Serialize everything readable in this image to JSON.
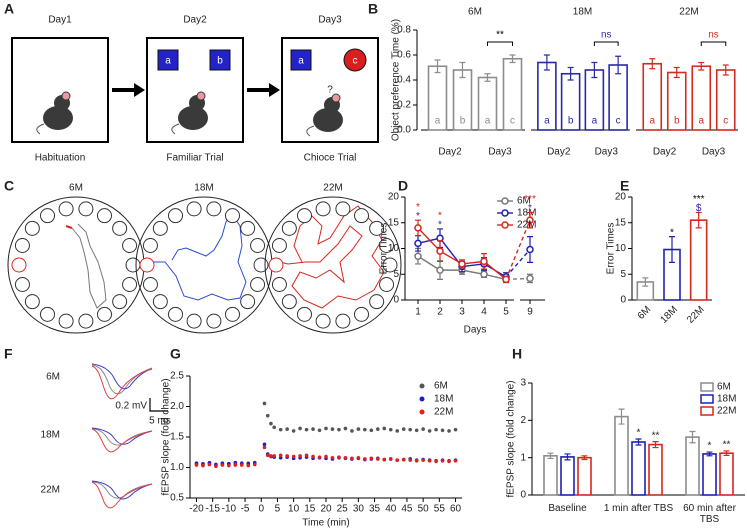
{
  "panel_a": {
    "label": "A",
    "days": [
      "Day1",
      "Day2",
      "Day3"
    ],
    "objects": [
      "a",
      "b",
      "a",
      "c"
    ],
    "question": "?",
    "captions": [
      "Habituation",
      "Familiar Trial",
      "Chioce Trial"
    ]
  },
  "panel_c": {
    "label": "C",
    "titles": [
      "6M",
      "18M",
      "22M"
    ]
  },
  "panel_f": {
    "label": "F",
    "rows": [
      "6M",
      "18M",
      "22M"
    ],
    "scale_v": "0.2 mV",
    "scale_t": "5 ms"
  },
  "chart_data": [
    {
      "type": "bar",
      "panel": "B",
      "ylabel": "Object preference Time (%)",
      "ylim": [
        0,
        0.8
      ],
      "yticks": [
        {
          "value": 0,
          "label": "0.0"
        },
        0.2,
        0.4,
        0.6,
        0.8
      ],
      "groups": [
        {
          "name": "6M",
          "color": "#8c8c8c",
          "bar_labels": [
            "a",
            "b",
            "a",
            "c"
          ],
          "values": [
            0.51,
            0.48,
            0.42,
            0.57
          ],
          "errors": [
            0.05,
            0.06,
            0.03,
            0.03
          ],
          "days": [
            "Day2",
            "Day3"
          ],
          "significance": "**",
          "significance_color": "#000000"
        },
        {
          "name": "18M",
          "color": "#2a2aa5",
          "bar_labels": [
            "a",
            "b",
            "a",
            "c"
          ],
          "values": [
            0.54,
            0.45,
            0.48,
            0.52
          ],
          "errors": [
            0.06,
            0.05,
            0.06,
            0.07
          ],
          "days": [
            "Day2",
            "Day3"
          ],
          "significance": "ns",
          "significance_color": "#2a2aa5"
        },
        {
          "name": "22M",
          "color": "#d42a20",
          "bar_labels": [
            "a",
            "b",
            "a",
            "c"
          ],
          "values": [
            0.53,
            0.46,
            0.51,
            0.48
          ],
          "errors": [
            0.04,
            0.04,
            0.03,
            0.04
          ],
          "days": [
            "Day2",
            "Day3"
          ],
          "significance": "ns",
          "significance_color": "#d42a20"
        }
      ]
    },
    {
      "type": "line",
      "panel": "D",
      "ylabel": "Error Times",
      "xlabel": "Days",
      "categories": [
        "1",
        "2",
        "3",
        "4",
        "5",
        "9"
      ],
      "ylim": [
        0,
        20
      ],
      "yticks": [
        0,
        5,
        10,
        15,
        20
      ],
      "legend": "upper right",
      "series": [
        {
          "name": "6M",
          "color": "#777777",
          "values": [
            8.5,
            5.8,
            5.8,
            5,
            4,
            4.2
          ],
          "errors": [
            1.5,
            1.8,
            0.8,
            0.6,
            0.5,
            0.8
          ]
        },
        {
          "name": "18M",
          "color": "#1f1fb4",
          "values": [
            11,
            12,
            6.5,
            7,
            4.5,
            9.8
          ],
          "errors": [
            1.5,
            1.8,
            1.0,
            1.2,
            0.8,
            2.5
          ]
        },
        {
          "name": "22M",
          "color": "#d9261c",
          "values": [
            14,
            9.5,
            7,
            7.5,
            4,
            15.5
          ],
          "errors": [
            1.5,
            2,
            0.8,
            1.5,
            0.6,
            1.5
          ]
        }
      ],
      "annotations": [
        {
          "category": "1",
          "marks": [
            {
              "text": "*",
              "color": "#1f1fb4"
            },
            {
              "text": "*",
              "color": "#d9261c"
            }
          ]
        },
        {
          "category": "2",
          "marks": [
            {
              "text": "*",
              "color": "#1f1fb4"
            },
            {
              "text": "*",
              "color": "#d9261c"
            }
          ]
        },
        {
          "category": "9",
          "marks": [
            {
              "text": "*",
              "color": "#1f1fb4"
            },
            {
              "text": "***",
              "color": "#d9261c"
            }
          ]
        }
      ]
    },
    {
      "type": "bar",
      "panel": "E",
      "ylabel": "Error Times",
      "categories": [
        "6M",
        "18M",
        "22M"
      ],
      "values": [
        3.5,
        9.8,
        15.5
      ],
      "errors": [
        0.8,
        2.5,
        1.5
      ],
      "colors": [
        "#8c8c8c",
        "#1f1fb4",
        "#d9261c"
      ],
      "ylim": [
        0,
        20
      ],
      "yticks": [
        0,
        5,
        10,
        15,
        20
      ],
      "annotations": [
        {
          "category": "18M",
          "marks": [
            {
              "text": "*",
              "color": "#000000"
            }
          ]
        },
        {
          "category": "22M",
          "marks": [
            {
              "text": "$",
              "color": "#1f1fb4"
            },
            {
              "text": "***",
              "color": "#000000"
            }
          ]
        }
      ]
    },
    {
      "type": "scatter",
      "panel": "G",
      "xlabel": "Time (min)",
      "ylabel": "fEPSP slope (fold change)",
      "legend": "upper right",
      "xlim": [
        -22,
        62
      ],
      "xticks": [
        -20,
        -15,
        -10,
        -5,
        0,
        5,
        10,
        15,
        20,
        25,
        30,
        35,
        40,
        45,
        50,
        55,
        60
      ],
      "ylim": [
        0.5,
        2.5
      ],
      "yticks": [
        0.5,
        {
          "value": 1,
          "label": "1.0"
        },
        1.5,
        {
          "value": 2,
          "label": "2.0"
        },
        2.5
      ],
      "x": [
        -20,
        -18,
        -16,
        -14,
        -12,
        -10,
        -8,
        -6,
        -4,
        -2,
        1,
        2,
        3,
        4,
        6,
        8,
        10,
        12,
        14,
        16,
        18,
        20,
        22,
        24,
        26,
        28,
        30,
        32,
        34,
        36,
        38,
        40,
        42,
        44,
        46,
        48,
        50,
        52,
        54,
        56,
        58,
        60
      ],
      "series": [
        {
          "name": "6M",
          "color": "#555555",
          "values": [
            1.05,
            1.04,
            1.06,
            1.03,
            1.05,
            1.06,
            1.04,
            1.05,
            1.07,
            1.06,
            2.05,
            1.85,
            1.72,
            1.66,
            1.62,
            1.63,
            1.6,
            1.64,
            1.62,
            1.63,
            1.61,
            1.64,
            1.63,
            1.62,
            1.64,
            1.6,
            1.63,
            1.62,
            1.61,
            1.63,
            1.64,
            1.62,
            1.6,
            1.63,
            1.62,
            1.61,
            1.63,
            1.6,
            1.62,
            1.61,
            1.6,
            1.62
          ]
        },
        {
          "name": "18M",
          "color": "#1b1bd6",
          "values": [
            1.07,
            1.06,
            1.08,
            1.05,
            1.07,
            1.06,
            1.08,
            1.07,
            1.06,
            1.08,
            1.38,
            1.22,
            1.18,
            1.17,
            1.16,
            1.17,
            1.15,
            1.16,
            1.17,
            1.15,
            1.16,
            1.15,
            1.14,
            1.16,
            1.15,
            1.14,
            1.15,
            1.13,
            1.14,
            1.15,
            1.13,
            1.14,
            1.12,
            1.13,
            1.14,
            1.12,
            1.13,
            1.12,
            1.11,
            1.12,
            1.11,
            1.12
          ]
        },
        {
          "name": "22M",
          "color": "#e0201b",
          "values": [
            1.04,
            1.03,
            1.05,
            1.02,
            1.04,
            1.03,
            1.05,
            1.04,
            1.03,
            1.05,
            1.33,
            1.2,
            1.19,
            1.19,
            1.2,
            1.19,
            1.18,
            1.19,
            1.2,
            1.18,
            1.17,
            1.18,
            1.16,
            1.17,
            1.16,
            1.15,
            1.16,
            1.14,
            1.15,
            1.14,
            1.13,
            1.14,
            1.12,
            1.13,
            1.12,
            1.11,
            1.12,
            1.11,
            1.1,
            1.11,
            1.1,
            1.11
          ]
        }
      ]
    },
    {
      "type": "bar",
      "panel": "H",
      "ylabel": "fEPSP slope (fold change)",
      "categories": [
        "Baseline",
        "1 min after TBS",
        "60 min after TBS"
      ],
      "ylim": [
        0,
        3
      ],
      "yticks": [
        0,
        1,
        2,
        3
      ],
      "legend": "upper right",
      "series": [
        {
          "name": "6M",
          "color": "#8c8c8c",
          "values": [
            1.05,
            2.1,
            1.55
          ],
          "errors": [
            0.07,
            0.2,
            0.15
          ]
        },
        {
          "name": "18M",
          "color": "#1f1fb4",
          "values": [
            1.02,
            1.42,
            1.1
          ],
          "errors": [
            0.08,
            0.08,
            0.05
          ]
        },
        {
          "name": "22M",
          "color": "#d9261c",
          "values": [
            1.0,
            1.35,
            1.12
          ],
          "errors": [
            0.05,
            0.08,
            0.06
          ]
        }
      ],
      "annotations": [
        {
          "category": "1 min after TBS",
          "series": "18M",
          "text": "*"
        },
        {
          "category": "1 min after TBS",
          "series": "22M",
          "text": "**"
        },
        {
          "category": "60 min after TBS",
          "series": "18M",
          "text": "*"
        },
        {
          "category": "60 min after TBS",
          "series": "22M",
          "text": "**"
        }
      ]
    }
  ]
}
